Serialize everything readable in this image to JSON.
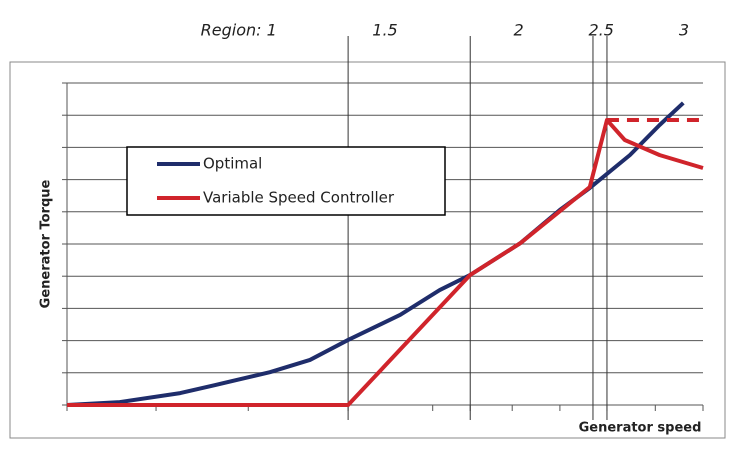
{
  "chart_data": {
    "type": "line",
    "xlabel": "Generator speed",
    "ylabel": "Generator Torque",
    "xlim": [
      0,
      10
    ],
    "ylim": [
      0,
      10
    ],
    "xticks": [
      0,
      1.4,
      2.85,
      4.42,
      5.75,
      6.34,
      7.0,
      7.75,
      8.49,
      9.25,
      10
    ],
    "yticks": [
      0,
      1,
      2,
      3,
      4,
      5,
      6,
      7,
      8,
      9,
      10
    ],
    "grid": true,
    "regions": [
      {
        "label": "Region: 1",
        "at": 2.7
      },
      {
        "label": "1.5",
        "at": 5.0,
        "boundary": 4.42
      },
      {
        "label": "2",
        "at": 7.1,
        "boundary": 6.34
      },
      {
        "label": "2.5",
        "at": 8.4,
        "boundary": 8.27
      },
      {
        "label": "3",
        "at": 9.7,
        "boundary": 8.49
      }
    ],
    "series": [
      {
        "name": "Optimal",
        "color": "#1f2d6b",
        "x": [
          0,
          0.83,
          1.78,
          2.33,
          3.19,
          3.82,
          4.42,
          5.24,
          5.86,
          6.34,
          7.13,
          7.75,
          8.22,
          8.85,
          9.32,
          9.69
        ],
        "values": [
          0,
          0.09,
          0.37,
          0.62,
          1.02,
          1.4,
          2.02,
          2.8,
          3.57,
          4.04,
          5.03,
          6.06,
          6.74,
          7.76,
          8.7,
          9.38
        ]
      },
      {
        "name": "Variable Speed Controller",
        "color": "#d0242b",
        "x": [
          0,
          4.42,
          6.34,
          7.13,
          8.22,
          8.49,
          8.77,
          9.32,
          10
        ],
        "values": [
          0,
          0,
          4.04,
          5.03,
          6.77,
          8.85,
          8.23,
          7.76,
          7.36
        ]
      }
    ],
    "dashed_line": {
      "color": "#d0242b",
      "x": [
        8.49,
        10
      ],
      "values": [
        8.85,
        8.85
      ]
    }
  }
}
